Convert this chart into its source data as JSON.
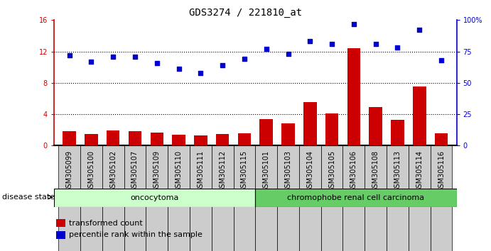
{
  "title": "GDS3274 / 221810_at",
  "samples": [
    "GSM305099",
    "GSM305100",
    "GSM305102",
    "GSM305107",
    "GSM305109",
    "GSM305110",
    "GSM305111",
    "GSM305112",
    "GSM305115",
    "GSM305101",
    "GSM305103",
    "GSM305104",
    "GSM305105",
    "GSM305106",
    "GSM305108",
    "GSM305113",
    "GSM305114",
    "GSM305116"
  ],
  "transformed_count": [
    1.8,
    1.5,
    1.9,
    1.8,
    1.7,
    1.4,
    1.3,
    1.5,
    1.6,
    3.4,
    2.8,
    5.5,
    4.1,
    12.4,
    4.9,
    3.3,
    7.5,
    1.6
  ],
  "percentile_rank": [
    72,
    67,
    71,
    71,
    66,
    61,
    58,
    64,
    69,
    77,
    73,
    83,
    81,
    97,
    81,
    78,
    92,
    68
  ],
  "bar_color": "#cc0000",
  "dot_color": "#0000cc",
  "oncocytoma_label": "oncocytoma",
  "carcinoma_label": "chromophobe renal cell carcinoma",
  "disease_state_label": "disease state",
  "legend_bar": "transformed count",
  "legend_dot": "percentile rank within the sample",
  "oncocytoma_count": 9,
  "carcinoma_count": 9,
  "ylim_left": [
    0,
    16
  ],
  "ylim_right": [
    0,
    100
  ],
  "yticks_left": [
    0,
    4,
    8,
    12,
    16
  ],
  "ytick_labels_left": [
    "0",
    "4",
    "8",
    "12",
    "16"
  ],
  "yticks_right": [
    0,
    25,
    50,
    75,
    100
  ],
  "ytick_labels_right": [
    "0",
    "25",
    "50",
    "75",
    "100%"
  ],
  "background_color": "#ffffff",
  "tick_bg": "#cccccc",
  "onco_bg": "#ccffcc",
  "carcin_bg": "#66cc66",
  "grid_color": "#000000",
  "title_fontsize": 10,
  "tick_fontsize": 7,
  "label_fontsize": 8
}
